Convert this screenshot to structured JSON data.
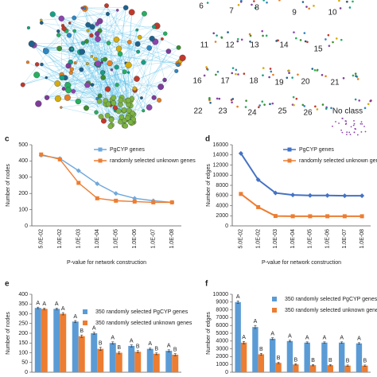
{
  "network_b": {
    "cluster_labels": [
      "6",
      "7",
      "8",
      "9",
      "10",
      "11",
      "12",
      "13",
      "14",
      "15",
      "16",
      "17",
      "18",
      "19",
      "20",
      "21",
      "22",
      "23",
      "24",
      "25",
      "26",
      "No class"
    ]
  },
  "chart_data": [
    {
      "type": "line",
      "label": "c",
      "ylabel": "Number of nodes",
      "xlabel": "P-value for network construction",
      "categories": [
        "5.0E-02",
        "1.0E-02",
        "1.0E-03",
        "1.0E-04",
        "1.0E-05",
        "1.0E-06",
        "1.0E-07",
        "1.0E-08"
      ],
      "ylim": [
        0,
        500
      ],
      "yticks": [
        0,
        100,
        200,
        300,
        400,
        500
      ],
      "legend": "upper right",
      "series": [
        {
          "name": "PgCYP genes",
          "color": "#6fa8dc",
          "marker": "diamond",
          "values": [
            435,
            415,
            340,
            260,
            200,
            170,
            155,
            145
          ]
        },
        {
          "name": "randomly selected unknown genes",
          "color": "#ed7d31",
          "marker": "square",
          "values": [
            440,
            410,
            265,
            170,
            155,
            150,
            145,
            145
          ]
        }
      ]
    },
    {
      "type": "line",
      "label": "d",
      "ylabel": "Number of edges",
      "xlabel": "P-value for network construction",
      "categories": [
        "5.0E-02",
        "1.0E-02",
        "1.0E-03",
        "1.0E-04",
        "1.0E-05",
        "1.0E-06",
        "1.0E-07",
        "1.0E-08"
      ],
      "ylim": [
        0,
        16000
      ],
      "yticks": [
        0,
        2000,
        4000,
        6000,
        8000,
        10000,
        12000,
        14000,
        16000
      ],
      "legend": "upper right",
      "series": [
        {
          "name": "PgCYP genes",
          "color": "#4472c4",
          "marker": "diamond",
          "values": [
            14300,
            9100,
            6500,
            6100,
            6000,
            6000,
            5950,
            5950
          ]
        },
        {
          "name": "randomly selected unknown genes",
          "color": "#ed7d31",
          "marker": "square",
          "values": [
            6300,
            3700,
            1950,
            1900,
            1900,
            1900,
            1900,
            1900
          ]
        }
      ]
    },
    {
      "type": "bar",
      "label": "e",
      "ylabel": "Number of nodes",
      "ylim": [
        0,
        400
      ],
      "yticks": [
        0,
        50,
        100,
        150,
        200,
        250,
        300,
        350,
        400
      ],
      "legend": "center right",
      "series": [
        {
          "name": "350 randomly selected PgCYP genes",
          "color": "#5b9bd5",
          "values": [
            330,
            325,
            260,
            200,
            150,
            135,
            120,
            110
          ],
          "errors": [
            4,
            4,
            5,
            5,
            6,
            5,
            5,
            5
          ],
          "letters": [
            "A",
            "A",
            "A",
            "A",
            "A",
            "A",
            "A",
            "A"
          ]
        },
        {
          "name": "350 randomly selected unknown genes",
          "color": "#ed7d31",
          "values": [
            325,
            300,
            185,
            120,
            100,
            105,
            95,
            90
          ],
          "errors": [
            4,
            6,
            6,
            8,
            6,
            6,
            5,
            5
          ],
          "letters": [
            "A",
            "A",
            "B",
            "B",
            "B",
            "B",
            "B",
            "B"
          ]
        }
      ]
    },
    {
      "type": "bar",
      "label": "f",
      "ylabel": "Number of edges",
      "ylim": [
        0,
        10000
      ],
      "yticks": [
        0,
        1000,
        2000,
        3000,
        4000,
        5000,
        6000,
        7000,
        8000,
        9000,
        10000
      ],
      "legend": "upper right",
      "series": [
        {
          "name": "350 randomly selected PgCYP genes",
          "color": "#5b9bd5",
          "values": [
            9000,
            5800,
            4300,
            4000,
            3800,
            3800,
            3800,
            3700
          ],
          "errors": [
            150,
            200,
            120,
            100,
            100,
            100,
            100,
            100
          ],
          "letters": [
            "A",
            "A",
            "A",
            "A",
            "A",
            "A",
            "A",
            "A"
          ]
        },
        {
          "name": "350 randomly selected unknown genes",
          "color": "#ed7d31",
          "values": [
            3800,
            2300,
            1200,
            1000,
            900,
            900,
            850,
            850
          ],
          "errors": [
            150,
            120,
            100,
            80,
            80,
            80,
            80,
            80
          ],
          "letters": [
            "A",
            "B",
            "B",
            "B",
            "B",
            "B",
            "B",
            "B"
          ]
        }
      ]
    }
  ]
}
